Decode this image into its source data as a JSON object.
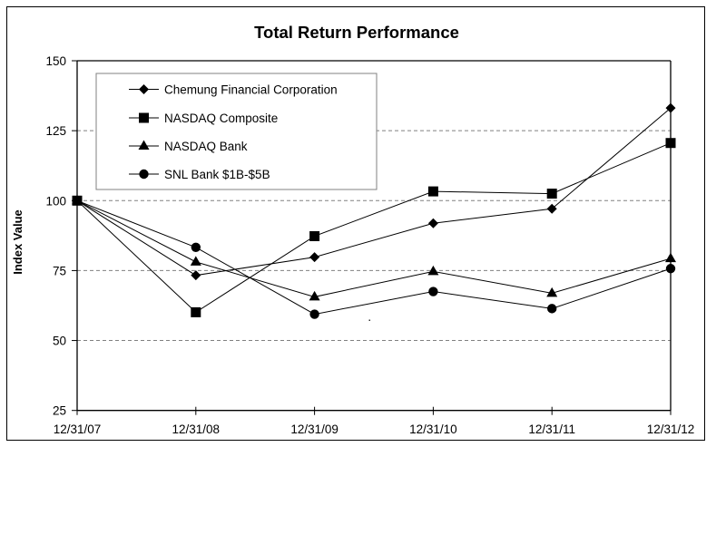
{
  "chart_data": {
    "type": "line",
    "title": "Total Return Performance",
    "xlabel": "",
    "ylabel": "Index Value",
    "categories": [
      "12/31/07",
      "12/31/08",
      "12/31/09",
      "12/31/10",
      "12/31/11",
      "12/31/12"
    ],
    "ylim": [
      25,
      150
    ],
    "yticks": [
      25,
      50,
      75,
      100,
      125,
      150
    ],
    "grid": {
      "y": true,
      "style": "dashed",
      "color": "#808080"
    },
    "legend_position": "upper-left inside plot",
    "series": [
      {
        "name": "Chemung Financial Corporation",
        "marker": "diamond",
        "values": [
          100,
          73.3,
          79.8,
          91.9,
          97.1,
          133.1
        ]
      },
      {
        "name": "NASDAQ Composite",
        "marker": "square",
        "values": [
          100,
          60.1,
          87.3,
          103.3,
          102.5,
          120.6
        ]
      },
      {
        "name": "NASDAQ Bank",
        "marker": "triangle",
        "values": [
          100,
          78.1,
          65.6,
          74.7,
          66.9,
          79.3
        ]
      },
      {
        "name": "SNL Bank $1B-$5B",
        "marker": "circle",
        "values": [
          100,
          83.3,
          59.4,
          67.5,
          61.4,
          75.7
        ]
      }
    ]
  },
  "colors": {
    "line": "#000000",
    "marker": "#000000",
    "grid": "#808080",
    "legend_border": "#808080",
    "background": "#ffffff"
  }
}
